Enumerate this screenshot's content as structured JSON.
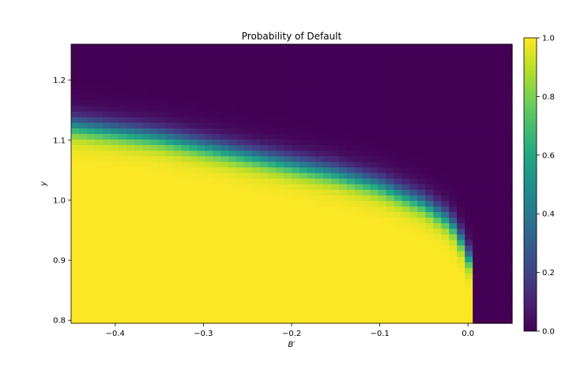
{
  "chart_data": {
    "type": "heatmap",
    "title": "Probability of Default",
    "xlabel": "B′",
    "ylabel": "y",
    "xlim": [
      -0.45,
      0.05
    ],
    "ylim": [
      0.795,
      1.26
    ],
    "xticks": [
      -0.4,
      -0.3,
      -0.2,
      -0.1,
      0.0
    ],
    "xtick_labels": [
      "−0.4",
      "−0.3",
      "−0.2",
      "−0.1",
      "0.0"
    ],
    "yticks": [
      0.8,
      0.9,
      1.0,
      1.1,
      1.2
    ],
    "ytick_labels": [
      "0.8",
      "0.9",
      "1.0",
      "1.1",
      "1.2"
    ],
    "colormap": "viridis",
    "colorbar": {
      "range": [
        0.0,
        1.0
      ],
      "ticks": [
        0.0,
        0.2,
        0.4,
        0.6,
        0.8,
        1.0
      ],
      "tick_labels": [
        "0.0",
        "0.2",
        "0.4",
        "0.6",
        "0.8",
        "1.0"
      ]
    },
    "default_threshold_y": [
      [
        -0.45,
        1.125
      ],
      [
        -0.4,
        1.115
      ],
      [
        -0.35,
        1.105
      ],
      [
        -0.3,
        1.09
      ],
      [
        -0.25,
        1.075
      ],
      [
        -0.2,
        1.06
      ],
      [
        -0.15,
        1.045
      ],
      [
        -0.1,
        1.025
      ],
      [
        -0.05,
        0.995
      ],
      [
        -0.02,
        0.965
      ],
      [
        0.0,
        0.915
      ],
      [
        0.005,
        0.86
      ]
    ],
    "transition_width_y": 0.045,
    "default_region_max_x": 0.005,
    "grid": false
  }
}
